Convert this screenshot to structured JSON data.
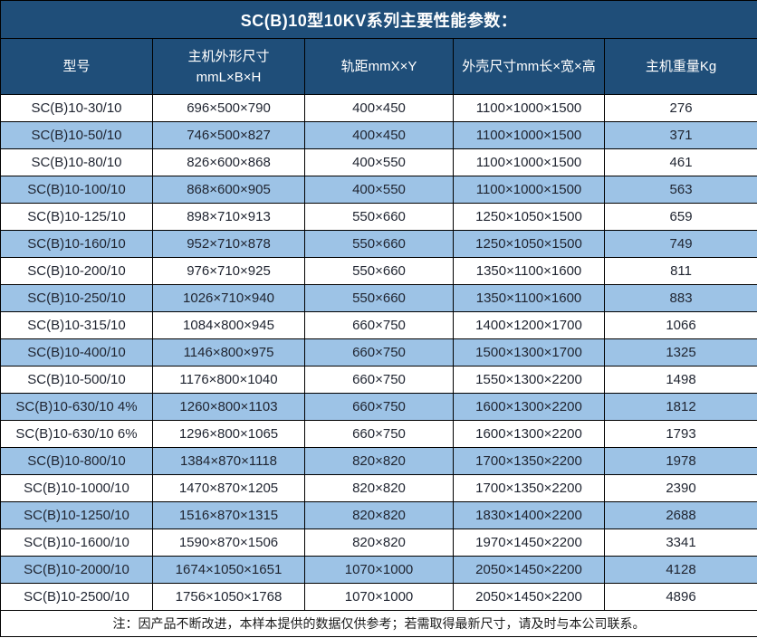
{
  "title": "SC(B)10型10KV系列主要性能参数：",
  "table": {
    "columns": {
      "model": "型号",
      "main_dim_line1": "主机外形尺寸",
      "main_dim_line2": "mmL×B×H",
      "rail": "轨距mmX×Y",
      "shell": "外壳尺寸mm长×宽×高",
      "weight": "主机重量Kg"
    },
    "rows": [
      [
        "SC(B)10-30/10",
        "696×500×790",
        "400×450",
        "1100×1000×1500",
        "276"
      ],
      [
        "SC(B)10-50/10",
        "746×500×827",
        "400×450",
        "1100×1000×1500",
        "371"
      ],
      [
        "SC(B)10-80/10",
        "826×600×868",
        "400×550",
        "1100×1000×1500",
        "461"
      ],
      [
        "SC(B)10-100/10",
        "868×600×905",
        "400×550",
        "1100×1000×1500",
        "563"
      ],
      [
        "SC(B)10-125/10",
        "898×710×913",
        "550×660",
        "1250×1050×1500",
        "659"
      ],
      [
        "SC(B)10-160/10",
        "952×710×878",
        "550×660",
        "1250×1050×1500",
        "749"
      ],
      [
        "SC(B)10-200/10",
        "976×710×925",
        "550×660",
        "1350×1100×1600",
        "811"
      ],
      [
        "SC(B)10-250/10",
        "1026×710×940",
        "550×660",
        "1350×1100×1600",
        "883"
      ],
      [
        "SC(B)10-315/10",
        "1084×800×945",
        "660×750",
        "1400×1200×1700",
        "1066"
      ],
      [
        "SC(B)10-400/10",
        "1146×800×975",
        "660×750",
        "1500×1300×1700",
        "1325"
      ],
      [
        "SC(B)10-500/10",
        "1176×800×1040",
        "660×750",
        "1550×1300×2200",
        "1498"
      ],
      [
        "SC(B)10-630/10 4%",
        "1260×800×1103",
        "660×750",
        "1600×1300×2200",
        "1812"
      ],
      [
        "SC(B)10-630/10 6%",
        "1296×800×1065",
        "660×750",
        "1600×1300×2200",
        "1793"
      ],
      [
        "SC(B)10-800/10",
        "1384×870×1118",
        "820×820",
        "1700×1350×2200",
        "1978"
      ],
      [
        "SC(B)10-1000/10",
        "1470×870×1205",
        "820×820",
        "1700×1350×2200",
        "2390"
      ],
      [
        "SC(B)10-1250/10",
        "1516×870×1315",
        "820×820",
        "1830×1400×2200",
        "2688"
      ],
      [
        "SC(B)10-1600/10",
        "1590×870×1506",
        "820×820",
        "1970×1450×2200",
        "3341"
      ],
      [
        "SC(B)10-2000/10",
        "1674×1050×1651",
        "1070×1000",
        "2050×1450×2200",
        "4128"
      ],
      [
        "SC(B)10-2500/10",
        "1756×1050×1768",
        "1070×1000",
        "2050×1450×2200",
        "4896"
      ]
    ]
  },
  "note": "注：因产品不断改进，本样本提供的数据仅供参考；若需取得最新尺寸，请及时与本公司联系。",
  "colors": {
    "header_bg": "#1F4E79",
    "alt_row_bg": "#9DC3E6",
    "row_bg": "#FFFFFF",
    "border": "#000000",
    "header_text": "#FFFFFF",
    "body_text": "#1F2430",
    "note_text": "#1A1A1A"
  }
}
